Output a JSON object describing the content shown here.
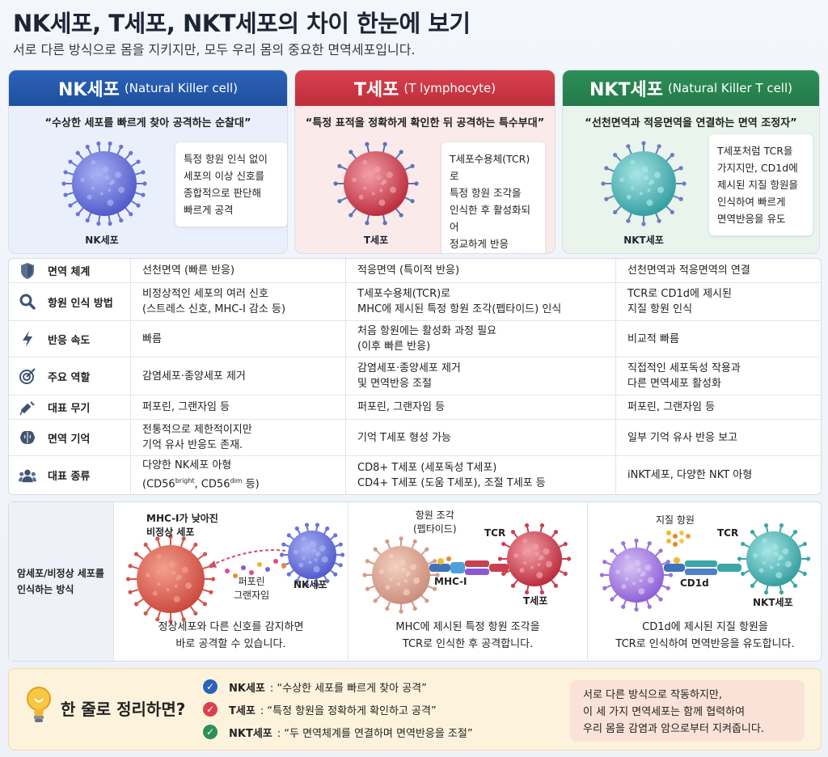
{
  "title": "NK세포, T세포, NKT세포의 차이 한눈에 보기",
  "subtitle": "서로 다른 방식으로 몸을 지키지만, 모두 우리 몸의 중요한 면역세포입니다.",
  "colors": {
    "nk": "#2b63b8",
    "t": "#d8424e",
    "nkt": "#2e8f58"
  },
  "cards": {
    "nk": {
      "name": "NK세포",
      "english": "(Natural Killer cell)",
      "quote": "“수상한 세포를 빠르게 찾아 공격하는 순찰대”",
      "desc": [
        "특정 항원 인식 없이",
        "세포의 이상 신호를",
        "종합적으로 판단해",
        "빠르게 공격"
      ],
      "cell_label": "NK세포"
    },
    "t": {
      "name": "T세포",
      "english": "(T lymphocyte)",
      "quote": "“특정 표적을 정확하게 확인한 뒤 공격하는 특수부대”",
      "desc": [
        "T세포수용체(TCR)로",
        "특정 항원 조각을",
        "인식한 후 활성화되어",
        "정교하게 반응"
      ],
      "cell_label": "T세포"
    },
    "nkt": {
      "name": "NKT세포",
      "english": "(Natural Killer T cell)",
      "quote": "“선천면역과 적응면역을 연결하는 면역 조정자”",
      "desc": [
        "T세포처럼 TCR을",
        "가지지만, CD1d에",
        "제시된 지질 항원을",
        "인식하여 빠르게",
        "면역반응을 유도"
      ],
      "cell_label": "NKT세포"
    }
  },
  "table": {
    "rows": [
      {
        "icon": "shield-icon",
        "label": "면역 체계",
        "nk": [
          "선천면역 (빠른 반응)"
        ],
        "t": [
          "적응면역 (특이적 반응)"
        ],
        "nkt": [
          "선천면역과 적응면역의 연결"
        ]
      },
      {
        "icon": "magnifier-icon",
        "label": "항원 인식 방법",
        "nk": [
          "비정상적인 세포의 여러 신호",
          "(스트레스 신호, MHC-I 감소 등)"
        ],
        "t": [
          "T세포수용체(TCR)로",
          "MHC에 제시된 특정 항원 조각(펩타이드) 인식"
        ],
        "nkt": [
          "TCR로 CD1d에 제시된",
          "지질 항원 인식"
        ]
      },
      {
        "icon": "lightning-icon",
        "label": "반응 속도",
        "nk": [
          "빠름"
        ],
        "t": [
          "처음 항원에는 활성화 과정 필요",
          "(이후 빠른 반응)"
        ],
        "nkt": [
          "비교적 빠름"
        ]
      },
      {
        "icon": "target-icon",
        "label": "주요 역할",
        "nk": [
          "감염세포·종양세포 제거"
        ],
        "t": [
          "감염세포·종양세포 제거",
          "및 면역반응 조절"
        ],
        "nkt": [
          "직접적인 세포독성 작용과",
          "다른 면역세포 활성화"
        ]
      },
      {
        "icon": "syringe-icon",
        "label": "대표 무기",
        "nk": [
          "퍼포린, 그랜자임 등"
        ],
        "t": [
          "퍼포린, 그랜자임 등"
        ],
        "nkt": [
          "퍼포린, 그랜자임 등"
        ]
      },
      {
        "icon": "brain-icon",
        "label": "면역 기억",
        "nk": [
          "전통적으로 제한적이지만",
          "기억 유사 반응도 존재."
        ],
        "t": [
          "기억 T세포 형성 가능"
        ],
        "nkt": [
          "일부 기억 유사 반응 보고"
        ]
      },
      {
        "icon": "people-icon",
        "label": "대표 종류",
        "nk": [
          "다양한 NK세포 아형"
        ],
        "nk_sub": {
          "prefix": "(CD56",
          "sup1": "bright",
          "mid": ", CD56",
          "sup2": "dim",
          "suffix": " 등)"
        },
        "t": [
          "CD8+ T세포 (세포독성 T세포)",
          "CD4+ T세포 (도움 T세포), 조절 T세포 등"
        ],
        "nkt": [
          "iNKT세포, 다양한 NKT 아형"
        ]
      }
    ]
  },
  "recognition": {
    "label": [
      "암세포/비정상 세포를",
      "인식하는 방식"
    ],
    "nk": {
      "target_label": [
        "MHC-I가 낮아진",
        "비정상 세포"
      ],
      "weapon_label": [
        "퍼포린",
        "그랜자임"
      ],
      "cell_label": "NK세포",
      "caption": [
        "정상세포와 다른 신호를 감지하면",
        "바로 공격할 수 있습니다."
      ]
    },
    "t": {
      "antigen_label": [
        "항원 조각",
        "(펩타이드)"
      ],
      "tcr_label": "TCR",
      "mhc_label": "MHC-I",
      "cell_label": "T세포",
      "caption": [
        "MHC에 제시된 특정 항원 조각을",
        "TCR로 인식한 후 공격합니다."
      ]
    },
    "nkt": {
      "antigen_label": "지질 항원",
      "tcr_label": "TCR",
      "cd1d_label": "CD1d",
      "cell_label": "NKT세포",
      "caption": [
        "CD1d에 제시된 지질 항원을",
        "TCR로 인식하여 면역반응을 유도합니다."
      ]
    }
  },
  "summary": {
    "title": "한 줄로 정리하면?",
    "items": [
      {
        "name": "NK세포",
        "text": ": “수상한 세포를 빠르게 찾아 공격”",
        "color": "#2b63b8"
      },
      {
        "name": "T세포",
        "text": ": “특정 항원을 정확하게 확인하고 공격”",
        "color": "#d8424e"
      },
      {
        "name": "NKT세포",
        "text": ": “두 면역체계를 연결하며 면역반응을 조절”",
        "color": "#2e8f58"
      }
    ],
    "note": [
      "서로 다른 방식으로 작동하지만,",
      "이 세 가지 면역세포는 함께 협력하여",
      "우리 몸을 감염과 암으로부터 지켜줍니다."
    ]
  }
}
